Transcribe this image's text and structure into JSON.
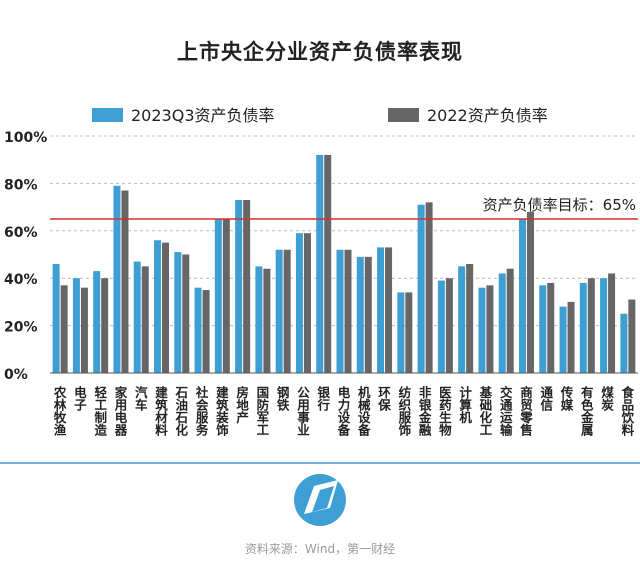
{
  "chart_data": {
    "type": "bar",
    "title": "上市央企分业资产负债率表现",
    "xlabel": "",
    "ylabel": "",
    "ylim": [
      0,
      100
    ],
    "yticks": [
      "0%",
      "20%",
      "40%",
      "60%",
      "80%",
      "100%"
    ],
    "grid": true,
    "legend_position": "top",
    "categories": [
      "农林牧渔",
      "电子",
      "轻工制造",
      "家用电器",
      "汽车",
      "建筑材料",
      "石油石化",
      "社会服务",
      "建筑装饰",
      "房地产",
      "国防军工",
      "钢铁",
      "公用事业",
      "银行",
      "电力设备",
      "机械设备",
      "环保",
      "纺织服饰",
      "非银金融",
      "医药生物",
      "计算机",
      "基础化工",
      "交通运输",
      "商贸零售",
      "通信",
      "传媒",
      "有色金属",
      "煤炭",
      "食品饮料"
    ],
    "series": [
      {
        "name": "2023Q3资产负债率",
        "color": "#3d9fd3",
        "values": [
          46,
          40,
          43,
          79,
          47,
          56,
          51,
          36,
          65,
          73,
          45,
          52,
          59,
          92,
          52,
          49,
          53,
          34,
          71,
          39,
          45,
          36,
          42,
          65,
          37,
          28,
          38,
          40,
          25
        ]
      },
      {
        "name": "2022资产负债率",
        "color": "#666666",
        "values": [
          37,
          36,
          40,
          77,
          45,
          55,
          50,
          35,
          65,
          73,
          44,
          52,
          59,
          92,
          52,
          49,
          53,
          34,
          72,
          40,
          46,
          37,
          44,
          68,
          38,
          30,
          40,
          42,
          31
        ]
      }
    ],
    "target_line": {
      "value": 65,
      "label": "资产负债率目标：65%",
      "color": "#d9312e"
    }
  },
  "footer": {
    "source": "资料来源：Wind，第一财经"
  },
  "colors": {
    "accent_line": "#3d9fd3",
    "grid": "#bbbbbb"
  }
}
